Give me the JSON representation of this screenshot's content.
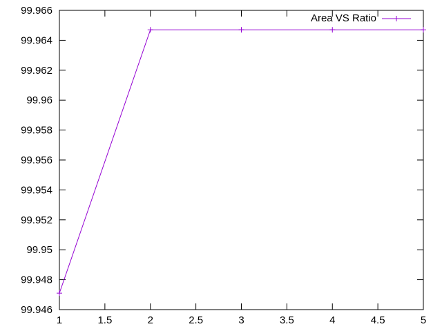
{
  "chart_data": {
    "type": "line",
    "title": "",
    "xlabel": "",
    "ylabel": "",
    "xlim": [
      1,
      5
    ],
    "ylim": [
      99.946,
      99.966
    ],
    "x_ticks": [
      "1",
      "1.5",
      "2",
      "2.5",
      "3",
      "3.5",
      "4",
      "4.5",
      "5"
    ],
    "y_ticks": [
      "99.946",
      "99.948",
      "99.95",
      "99.952",
      "99.954",
      "99.956",
      "99.958",
      "99.96",
      "99.962",
      "99.964",
      "99.966"
    ],
    "grid": false,
    "legend_position": "top-right",
    "series": [
      {
        "name": "Area VS Ratio",
        "color": "#9400d3",
        "marker": "plus",
        "x": [
          1,
          2,
          3,
          4,
          5
        ],
        "y": [
          99.9471,
          99.9647,
          99.9647,
          99.9647,
          99.9647
        ]
      }
    ]
  }
}
